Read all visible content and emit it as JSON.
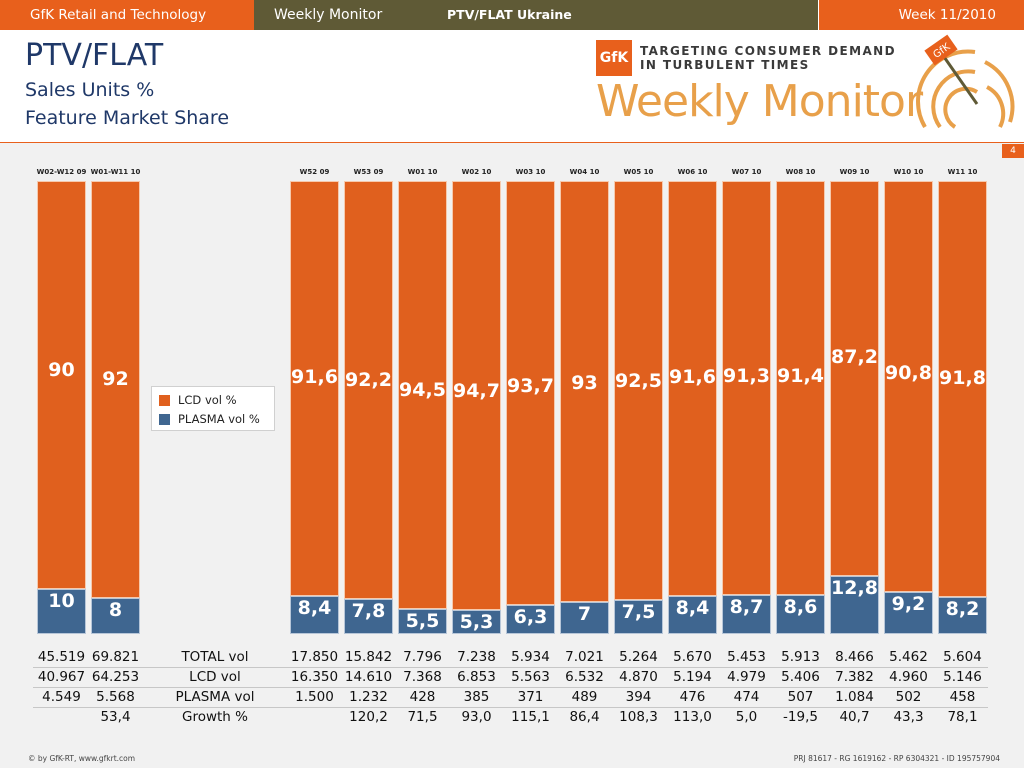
{
  "header": {
    "brand": "GfK Retail and Technology",
    "monitor": "Weekly Monitor",
    "report": "PTV/FLAT Ukraine",
    "week": "Week 11/2010"
  },
  "title": {
    "main": "PTV/FLAT",
    "sub1": "Sales Units %",
    "sub2": "Feature Market Share"
  },
  "logo": {
    "box": "GfK",
    "tag1": "TARGETING CONSUMER DEMAND",
    "tag2": "IN TURBULENT TIMES",
    "word": "Weekly Monitor",
    "target_label": "GfK"
  },
  "page_number": "4",
  "colors": {
    "accent": "#e8601c",
    "header_dark": "#5f5a36",
    "lcd": "#e0601e",
    "plasma": "#3f6690"
  },
  "chart_data": {
    "type": "bar",
    "stacked": true,
    "percent": true,
    "categories": [
      "W02-W12 09",
      "W01-W11 10",
      "W52 09",
      "W53 09",
      "W01 10",
      "W02 10",
      "W03 10",
      "W04 10",
      "W05 10",
      "W06 10",
      "W07 10",
      "W08 10",
      "W09 10",
      "W10 10",
      "W11 10"
    ],
    "series": [
      {
        "name": "LCD vol %",
        "color": "#e0601e",
        "values": [
          90,
          92,
          91.6,
          92.2,
          94.5,
          94.7,
          93.7,
          93,
          92.5,
          91.6,
          91.3,
          91.4,
          87.2,
          90.8,
          91.8
        ],
        "labels": [
          "90",
          "92",
          "91,6",
          "92,2",
          "94,5",
          "94,7",
          "93,7",
          "93",
          "92,5",
          "91,6",
          "91,3",
          "91,4",
          "87,2",
          "90,8",
          "91,8"
        ]
      },
      {
        "name": "PLASMA vol %",
        "color": "#3f6690",
        "values": [
          10,
          8,
          8.4,
          7.8,
          5.5,
          5.3,
          6.3,
          7,
          7.5,
          8.4,
          8.7,
          8.6,
          12.8,
          9.2,
          8.2
        ],
        "labels": [
          "10",
          "8",
          "8,4",
          "7,8",
          "5,5",
          "5,3",
          "6,3",
          "7",
          "7,5",
          "8,4",
          "8,7",
          "8,6",
          "12,8",
          "9,2",
          "8,2"
        ]
      }
    ],
    "ylim": [
      0,
      100
    ],
    "legend": "left-middle",
    "grid": false
  },
  "table": {
    "rows": [
      {
        "label": "TOTAL vol",
        "values": [
          "45.519",
          "69.821",
          "17.850",
          "15.842",
          "7.796",
          "7.238",
          "5.934",
          "7.021",
          "5.264",
          "5.670",
          "5.453",
          "5.913",
          "8.466",
          "5.462",
          "5.604"
        ]
      },
      {
        "label": "LCD vol",
        "values": [
          "40.967",
          "64.253",
          "16.350",
          "14.610",
          "7.368",
          "6.853",
          "5.563",
          "6.532",
          "4.870",
          "5.194",
          "4.979",
          "5.406",
          "7.382",
          "4.960",
          "5.146"
        ]
      },
      {
        "label": "PLASMA vol",
        "values": [
          "4.549",
          "5.568",
          "1.500",
          "1.232",
          "428",
          "385",
          "371",
          "489",
          "394",
          "476",
          "474",
          "507",
          "1.084",
          "502",
          "458"
        ]
      },
      {
        "label": "Growth %",
        "values": [
          "",
          "53,4",
          "",
          "120,2",
          "71,5",
          "93,0",
          "115,1",
          "86,4",
          "108,3",
          "113,0",
          "5,0",
          "-19,5",
          "40,7",
          "43,3",
          "78,1"
        ]
      }
    ]
  },
  "footer": {
    "left": "© by GfK-RT, www.gfkrt.com",
    "right": "PRJ 81617 - RG 1619162 - RP 6304321 - ID 195757904"
  }
}
